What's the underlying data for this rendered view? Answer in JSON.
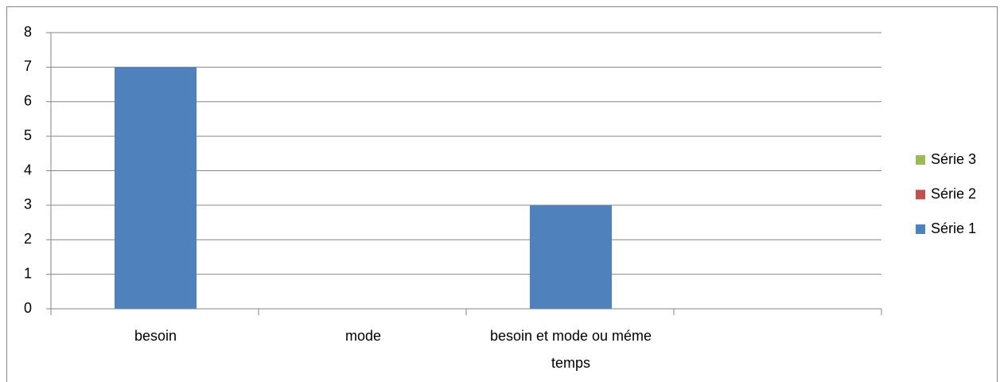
{
  "chart_data": {
    "type": "bar",
    "categories": [
      "besoin",
      "mode",
      "besoin et mode ou méme temps",
      null
    ],
    "series": [
      {
        "name": "Série 1",
        "color": "#4f81bd",
        "values": [
          7,
          0,
          3,
          null
        ]
      },
      {
        "name": "Série 2",
        "color": "#c0504d",
        "values": [
          0,
          0,
          0,
          null
        ]
      },
      {
        "name": "Série 3",
        "color": "#9bbb59",
        "values": [
          0,
          0,
          0,
          null
        ]
      }
    ],
    "ylim": [
      0,
      8
    ],
    "yticks": [
      0,
      1,
      2,
      3,
      4,
      5,
      6,
      7,
      8
    ],
    "grid": true,
    "legend": "right"
  }
}
